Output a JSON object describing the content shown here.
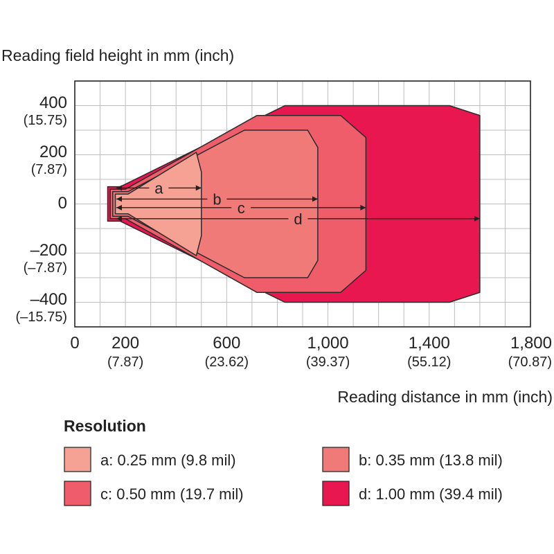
{
  "chart_data": {
    "type": "area",
    "title": "",
    "ylabel": "Reading field height in mm (inch)",
    "xlabel": "Reading distance in mm (inch)",
    "xlim": [
      0,
      1800
    ],
    "ylim": [
      -500,
      500
    ],
    "x_ticks": [
      {
        "value": 0,
        "label": "0",
        "sub": ""
      },
      {
        "value": 200,
        "label": "200",
        "sub": "(7.87)"
      },
      {
        "value": 600,
        "label": "600",
        "sub": "(23.62)"
      },
      {
        "value": 1000,
        "label": "1,000",
        "sub": "(39.37)"
      },
      {
        "value": 1400,
        "label": "1,400",
        "sub": "(55.12)"
      },
      {
        "value": 1800,
        "label": "1,800",
        "sub": "(70.87)"
      }
    ],
    "y_ticks": [
      {
        "value": 400,
        "label": "400",
        "sub": "(15.75)"
      },
      {
        "value": 200,
        "label": "200",
        "sub": "(7.87)"
      },
      {
        "value": 0,
        "label": "0",
        "sub": ""
      },
      {
        "value": -200,
        "label": "–200",
        "sub": "(–7.87)"
      },
      {
        "value": -400,
        "label": "–400",
        "sub": "(–15.75)"
      }
    ],
    "grid": true,
    "legend": {
      "title": "Resolution",
      "position": "bottom"
    },
    "series": [
      {
        "key": "d",
        "name": "d: 1.00 mm (39.4 mil)",
        "color": "#e8174f",
        "max_distance": 1600,
        "dim_y": -60,
        "outline": [
          [
            130,
            -60
          ],
          [
            130,
            70
          ],
          [
            180,
            70
          ],
          [
            830,
            400
          ],
          [
            1480,
            400
          ],
          [
            1600,
            360
          ],
          [
            1600,
            -360
          ],
          [
            1480,
            -400
          ],
          [
            830,
            -400
          ],
          [
            180,
            -70
          ],
          [
            130,
            -70
          ]
        ]
      },
      {
        "key": "c",
        "name": "c: 0.50 mm (19.7 mil)",
        "color": "#ee5d69",
        "max_distance": 1150,
        "dim_y": -15,
        "outline": [
          [
            140,
            -60
          ],
          [
            140,
            60
          ],
          [
            200,
            60
          ],
          [
            720,
            360
          ],
          [
            1050,
            360
          ],
          [
            1150,
            270
          ],
          [
            1150,
            -270
          ],
          [
            1050,
            -360
          ],
          [
            720,
            -360
          ],
          [
            200,
            -60
          ]
        ]
      },
      {
        "key": "b",
        "name": "b: 0.35 mm (13.8 mil)",
        "color": "#f07a78",
        "max_distance": 960,
        "dim_y": 20,
        "outline": [
          [
            150,
            -50
          ],
          [
            150,
            50
          ],
          [
            210,
            50
          ],
          [
            670,
            300
          ],
          [
            920,
            300
          ],
          [
            960,
            230
          ],
          [
            960,
            -230
          ],
          [
            920,
            -300
          ],
          [
            670,
            -300
          ],
          [
            210,
            -50
          ]
        ]
      },
      {
        "key": "a",
        "name": "a: 0.25 mm (9.8 mil)",
        "color": "#f5a294",
        "max_distance": 500,
        "dim_y": 65,
        "outline": [
          [
            160,
            -40
          ],
          [
            160,
            40
          ],
          [
            210,
            40
          ],
          [
            480,
            210
          ],
          [
            500,
            130
          ],
          [
            500,
            -130
          ],
          [
            480,
            -210
          ],
          [
            210,
            -40
          ]
        ]
      }
    ]
  }
}
